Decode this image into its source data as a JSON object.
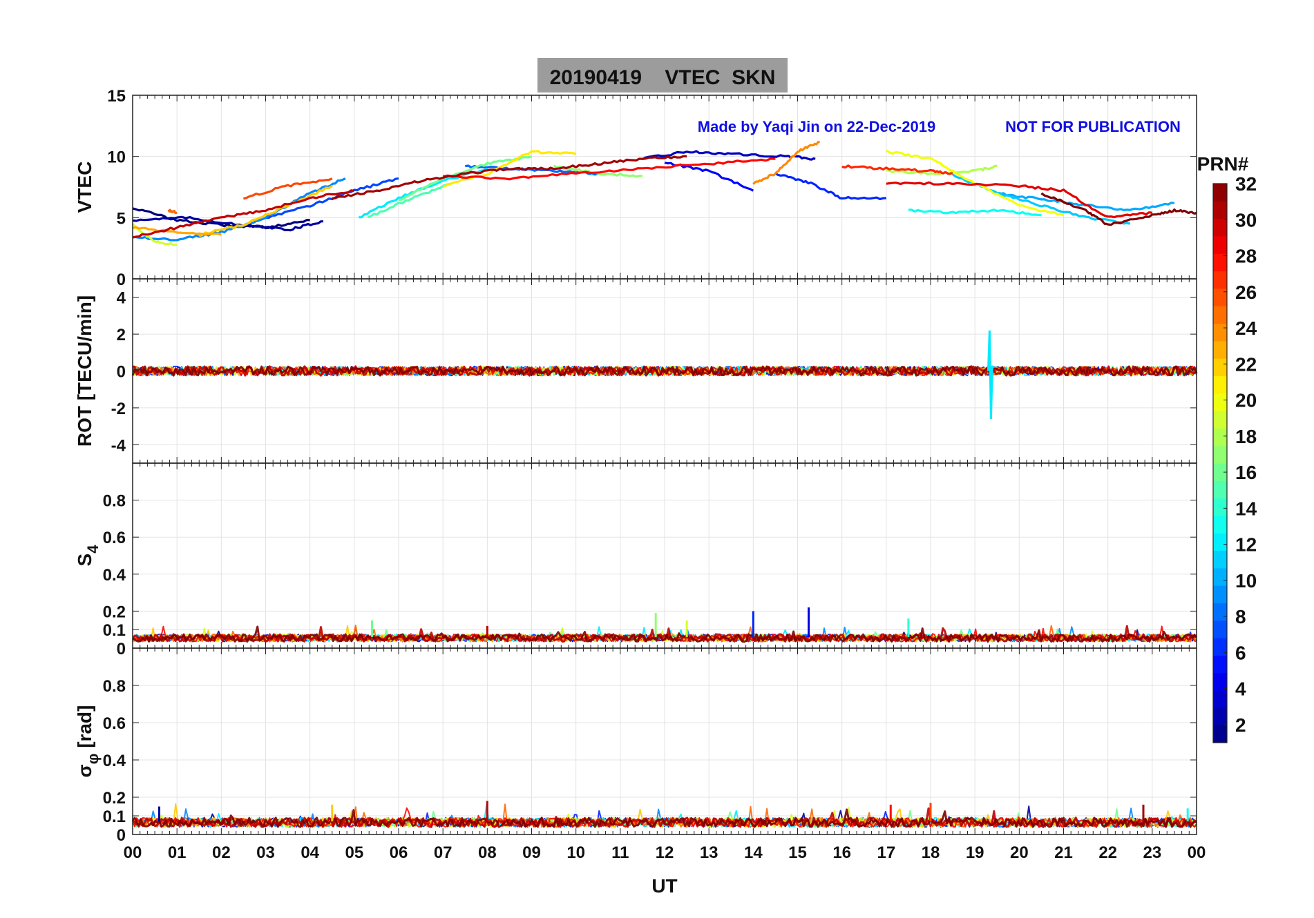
{
  "chart_data": {
    "type": "line",
    "title": "20190419    VTEC  SKN",
    "credit": "Made by Yaqi Jin on 22-Dec-2019",
    "watermark": "NOT FOR PUBLICATION",
    "xlabel": "UT",
    "x_ticks": [
      "00",
      "01",
      "02",
      "03",
      "04",
      "05",
      "06",
      "07",
      "08",
      "09",
      "10",
      "11",
      "12",
      "13",
      "14",
      "15",
      "16",
      "17",
      "18",
      "19",
      "20",
      "21",
      "22",
      "23",
      "00"
    ],
    "xlim": [
      0,
      24
    ],
    "colorbar": {
      "label": "PRN#",
      "range": [
        1,
        32
      ],
      "ticks": [
        2,
        4,
        6,
        8,
        10,
        12,
        14,
        16,
        18,
        20,
        22,
        24,
        26,
        28,
        30,
        32
      ],
      "colormap": "jet"
    },
    "panels": [
      {
        "id": "vtec",
        "ylabel": "VTEC",
        "ylim": [
          0,
          15
        ],
        "y_ticks": [
          0,
          5,
          10,
          15
        ],
        "series": [
          {
            "prn": 1,
            "x": [
              0.0,
              1.0,
              2.0,
              3.0,
              4.0
            ],
            "y": [
              5.8,
              4.8,
              4.4,
              4.2,
              4.8
            ]
          },
          {
            "prn": 2,
            "x": [
              0.0,
              1.2,
              2.5,
              3.5,
              4.3
            ],
            "y": [
              4.8,
              5.0,
              4.4,
              4.0,
              4.7
            ]
          },
          {
            "prn": 3,
            "x": [
              11.5,
              12.5,
              13.5,
              14.8,
              15.4
            ],
            "y": [
              9.8,
              10.4,
              10.2,
              10.0,
              9.8
            ]
          },
          {
            "prn": 5,
            "x": [
              12.0,
              13.0,
              14.0
            ],
            "y": [
              9.5,
              8.8,
              7.2
            ]
          },
          {
            "prn": 6,
            "x": [
              14.5,
              15.3,
              16.0,
              17.0
            ],
            "y": [
              8.6,
              7.8,
              6.6,
              6.6
            ]
          },
          {
            "prn": 7,
            "x": [
              3.0,
              4.0,
              5.0,
              6.0
            ],
            "y": [
              5.0,
              6.0,
              7.2,
              8.2
            ]
          },
          {
            "prn": 8,
            "x": [
              7.5,
              8.5,
              9.5,
              10.5
            ],
            "y": [
              9.2,
              9.0,
              8.8,
              8.6
            ]
          },
          {
            "prn": 9,
            "x": [
              0.0,
              1.0,
              2.0,
              3.0,
              4.0,
              4.8
            ],
            "y": [
              3.4,
              3.2,
              3.8,
              5.0,
              7.0,
              8.2
            ]
          },
          {
            "prn": 10,
            "x": [
              19.5,
              20.5,
              21.5,
              22.5,
              23.5
            ],
            "y": [
              7.0,
              6.5,
              6.0,
              5.6,
              6.2
            ]
          },
          {
            "prn": 11,
            "x": [
              18.5,
              19.5,
              20.5,
              21.5,
              22.5
            ],
            "y": [
              8.5,
              7.0,
              6.0,
              5.0,
              4.5
            ]
          },
          {
            "prn": 12,
            "x": [
              5.1,
              6.0,
              7.0,
              8.0
            ],
            "y": [
              5.0,
              6.6,
              8.0,
              9.0
            ]
          },
          {
            "prn": 13,
            "x": [
              17.5,
              18.5,
              19.5,
              20.5
            ],
            "y": [
              5.6,
              5.4,
              5.6,
              5.2
            ]
          },
          {
            "prn": 15,
            "x": [
              5.3,
              6.3,
              7.2
            ],
            "y": [
              5.0,
              6.6,
              7.8
            ]
          },
          {
            "prn": 16,
            "x": [
              6.0,
              7.0,
              8.0,
              9.0
            ],
            "y": [
              6.4,
              8.2,
              9.4,
              10.0
            ]
          },
          {
            "prn": 17,
            "x": [
              9.5,
              10.5,
              11.5
            ],
            "y": [
              9.2,
              8.6,
              8.4
            ]
          },
          {
            "prn": 18,
            "x": [
              17.0,
              18.0,
              19.0,
              19.5
            ],
            "y": [
              8.8,
              8.6,
              8.8,
              9.2
            ]
          },
          {
            "prn": 19,
            "x": [
              0.0,
              0.5,
              1.0
            ],
            "y": [
              4.4,
              3.0,
              2.8
            ]
          },
          {
            "prn": 20,
            "x": [
              17.0,
              18.0,
              19.0,
              20.0,
              21.0
            ],
            "y": [
              10.4,
              9.8,
              7.8,
              6.0,
              5.2
            ]
          },
          {
            "prn": 21,
            "x": [
              7.0,
              8.0,
              9.0,
              10.0
            ],
            "y": [
              7.6,
              8.6,
              10.4,
              10.2
            ]
          },
          {
            "prn": 22,
            "x": [
              1.5,
              2.5,
              3.5,
              4.5
            ],
            "y": [
              3.6,
              4.4,
              6.0,
              7.6
            ]
          },
          {
            "prn": 23,
            "x": [
              0.0,
              1.0,
              2.0
            ],
            "y": [
              4.2,
              3.8,
              3.6
            ]
          },
          {
            "prn": 24,
            "x": [
              14.0,
              14.5,
              15.0,
              15.5
            ],
            "y": [
              7.8,
              8.6,
              10.4,
              11.2
            ]
          },
          {
            "prn": 25,
            "x": [
              0.8,
              1.0
            ],
            "y": [
              5.6,
              5.4
            ]
          },
          {
            "prn": 26,
            "x": [
              2.5,
              3.5,
              4.5
            ],
            "y": [
              6.6,
              7.6,
              8.2
            ]
          },
          {
            "prn": 27,
            "x": [
              16.0,
              17.0,
              18.0,
              18.5
            ],
            "y": [
              9.2,
              9.0,
              8.8,
              8.6
            ]
          },
          {
            "prn": 28,
            "x": [
              7.0,
              8.5,
              10.0,
              11.5,
              13.0,
              14.5
            ],
            "y": [
              8.4,
              8.2,
              8.6,
              9.0,
              9.4,
              9.8
            ]
          },
          {
            "prn": 29,
            "x": [
              17.0,
              18.5,
              20.0,
              21.0,
              22.0,
              23.0
            ],
            "y": [
              7.8,
              7.8,
              7.6,
              7.2,
              5.0,
              5.4
            ]
          },
          {
            "prn": 30,
            "x": [
              0.0,
              1.0,
              2.0,
              3.0,
              4.0,
              5.0
            ],
            "y": [
              3.4,
              4.2,
              5.0,
              5.6,
              6.6,
              7.2
            ]
          },
          {
            "prn": 31,
            "x": [
              4.5,
              5.5,
              6.5,
              7.5,
              8.5,
              9.5,
              10.5,
              11.5,
              12.5
            ],
            "y": [
              6.6,
              7.2,
              8.0,
              8.6,
              9.0,
              9.0,
              9.4,
              9.8,
              10.0
            ]
          },
          {
            "prn": 32,
            "x": [
              20.5,
              21.5,
              22.0,
              23.0,
              23.5,
              24.0
            ],
            "y": [
              7.0,
              5.6,
              4.4,
              5.2,
              5.6,
              5.4
            ]
          }
        ]
      },
      {
        "id": "rot",
        "ylabel": "ROT [TECU/min]",
        "ylim": [
          -5,
          5
        ],
        "y_ticks": [
          -4,
          -2,
          0,
          2,
          4
        ]
      },
      {
        "id": "s4",
        "ylabel": "S",
        "ylabel_sub": "4",
        "ylim": [
          0,
          1
        ],
        "y_ticks": [
          0,
          0.1,
          0.2,
          0.4,
          0.6,
          0.8
        ],
        "y_tick_labels": [
          "0",
          "0.1",
          "0.2",
          "0.4",
          "0.6",
          "0.8"
        ]
      },
      {
        "id": "sigphi",
        "ylabel": "σ",
        "ylabel_sub": "φ",
        "ylabel_suffix": "[rad]",
        "ylim": [
          0,
          1
        ],
        "y_ticks": [
          0,
          0.1,
          0.2,
          0.4,
          0.6,
          0.8
        ],
        "y_tick_labels": [
          "0",
          "0.1",
          "0.2",
          "0.4",
          "0.6",
          "0.8"
        ]
      }
    ]
  }
}
